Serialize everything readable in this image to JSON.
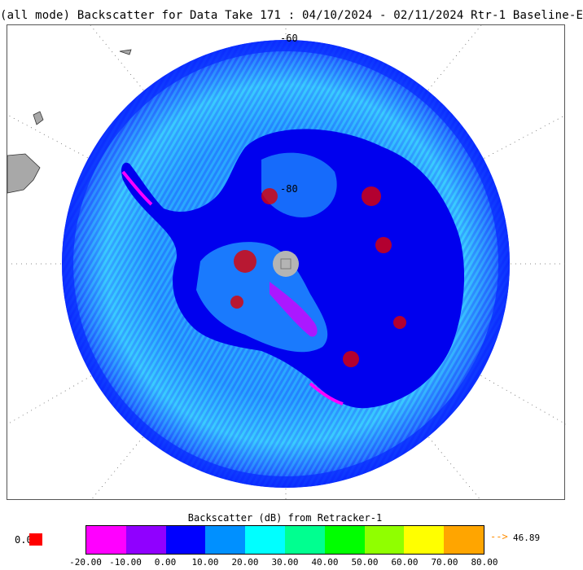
{
  "title": "(all mode) Backscatter for Data Take 171 : 04/10/2024 - 02/11/2024 Rtr-1 Baseline-E",
  "map": {
    "projection": "south-polar-stereographic",
    "latitude_labels": [
      "-60",
      "-80"
    ],
    "pole_hole_color": "#b4b4b4",
    "land_color": "#a8a8a8",
    "graticule": "dotted"
  },
  "colorbar": {
    "title": "Backscatter (dB) from Retracker-1",
    "ticks": [
      "-20.00",
      "-10.00",
      "0.00",
      "10.00",
      "20.00",
      "30.00",
      "40.00",
      "50.00",
      "60.00",
      "70.00",
      "80.00"
    ],
    "colors": [
      "#ff00ff",
      "#9000ff",
      "#0000ff",
      "#0090ff",
      "#00ffff",
      "#00ff90",
      "#00ff00",
      "#90ff00",
      "#ffff00",
      "#ffa500"
    ],
    "below_label": "0.0",
    "below_color": "#ff0000",
    "above_arrow": "-->",
    "above_label": "46.89",
    "above_color": "#ff8c00"
  }
}
